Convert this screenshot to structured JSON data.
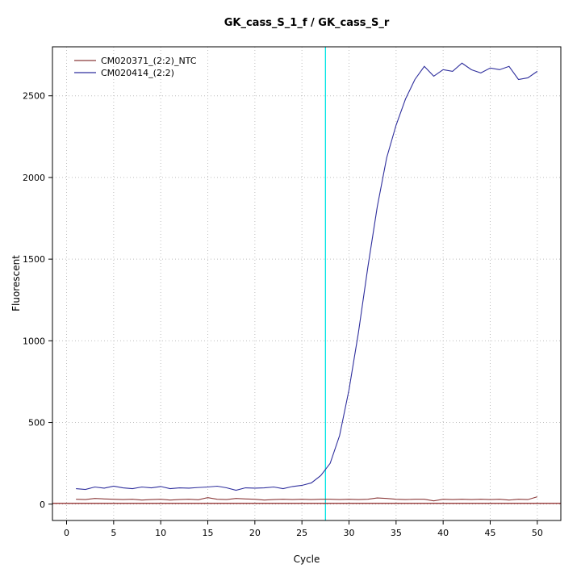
{
  "chart_data": {
    "type": "line",
    "title": "GK_cass_S_1_f / GK_cass_S_r",
    "xlabel": "Cycle",
    "ylabel": "Fluorescent",
    "xlim": [
      -1.5,
      52.5
    ],
    "ylim": [
      -100,
      2800
    ],
    "x_ticks": [
      0,
      5,
      10,
      15,
      20,
      25,
      30,
      35,
      40,
      45,
      50
    ],
    "y_ticks": [
      0,
      500,
      1000,
      1500,
      2000,
      2500
    ],
    "grid": true,
    "grid_color": "#bebebe",
    "axis_color": "#000000",
    "legend_position": "top-left",
    "threshold_line": {
      "y": 5,
      "color": "#8b2323"
    },
    "ct_line": {
      "x": 27.5,
      "color": "#00e5e5"
    },
    "x": [
      1,
      2,
      3,
      4,
      5,
      6,
      7,
      8,
      9,
      10,
      11,
      12,
      13,
      14,
      15,
      16,
      17,
      18,
      19,
      20,
      21,
      22,
      23,
      24,
      25,
      26,
      27,
      28,
      29,
      30,
      31,
      32,
      33,
      34,
      35,
      36,
      37,
      38,
      39,
      40,
      41,
      42,
      43,
      44,
      45,
      46,
      47,
      48,
      49,
      50
    ],
    "series": [
      {
        "name": "CM020371_(2:2)_NTC",
        "color": "#8b3a3a",
        "values": [
          30,
          28,
          35,
          32,
          30,
          28,
          30,
          25,
          28,
          30,
          25,
          28,
          30,
          27,
          40,
          30,
          28,
          35,
          32,
          30,
          25,
          28,
          30,
          28,
          30,
          28,
          30,
          30,
          28,
          30,
          28,
          30,
          38,
          35,
          30,
          28,
          30,
          30,
          20,
          30,
          28,
          30,
          28,
          30,
          28,
          30,
          25,
          30,
          28,
          45
        ]
      },
      {
        "name": "CM020414_(2:2)",
        "color": "#2f2f9d",
        "values": [
          95,
          90,
          105,
          98,
          110,
          100,
          95,
          105,
          100,
          108,
          95,
          100,
          98,
          102,
          105,
          110,
          100,
          85,
          100,
          98,
          100,
          105,
          95,
          108,
          115,
          130,
          175,
          250,
          420,
          700,
          1050,
          1450,
          1820,
          2120,
          2320,
          2480,
          2600,
          2680,
          2620,
          2660,
          2650,
          2700,
          2660,
          2640,
          2670,
          2660,
          2680,
          2600,
          2610,
          2650
        ]
      }
    ]
  }
}
